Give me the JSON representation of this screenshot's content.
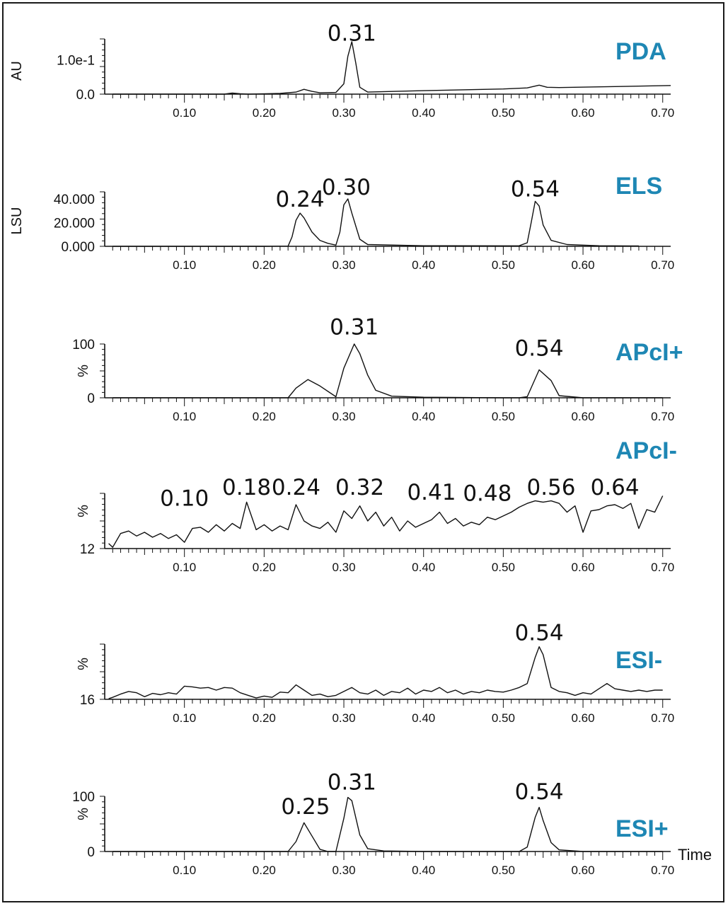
{
  "colors": {
    "detector_label": "#1e87b4",
    "trace": "#111111",
    "frame": "#1a1a1a"
  },
  "chart_data": [
    {
      "type": "line",
      "detector": "PDA",
      "ylabel": "AU",
      "xlim": [
        0.0,
        0.71
      ],
      "ylim": [
        0.0,
        0.16
      ],
      "yticks": [
        {
          "value": 0.0,
          "label": "0.0"
        },
        {
          "value": 0.1,
          "label": "1.0e-1"
        }
      ],
      "xticks": [
        "0.10",
        "0.20",
        "0.30",
        "0.40",
        "0.50",
        "0.60",
        "0.70"
      ],
      "peak_labels": [
        {
          "x": 0.31,
          "y": 0.155,
          "text": "0.31"
        }
      ],
      "x": [
        0.01,
        0.1,
        0.15,
        0.16,
        0.17,
        0.18,
        0.22,
        0.24,
        0.25,
        0.26,
        0.27,
        0.29,
        0.3,
        0.305,
        0.31,
        0.315,
        0.32,
        0.33,
        0.4,
        0.5,
        0.53,
        0.545,
        0.555,
        0.57,
        0.64,
        0.71
      ],
      "y": [
        0.0,
        0.0,
        0.0,
        0.003,
        0.001,
        0.0,
        0.002,
        0.006,
        0.014,
        0.008,
        0.004,
        0.005,
        0.03,
        0.11,
        0.152,
        0.09,
        0.02,
        0.006,
        0.01,
        0.015,
        0.018,
        0.026,
        0.02,
        0.019,
        0.022,
        0.025
      ]
    },
    {
      "type": "line",
      "detector": "ELS",
      "ylabel": "LSU",
      "xlim": [
        0.0,
        0.71
      ],
      "ylim": [
        0.0,
        46000
      ],
      "yticks": [
        {
          "value": 0,
          "label": "0.000"
        },
        {
          "value": 20000,
          "label": "20.000"
        },
        {
          "value": 40000,
          "label": "40.000"
        }
      ],
      "xticks": [
        "0.10",
        "0.20",
        "0.30",
        "0.40",
        "0.50",
        "0.60",
        "0.70"
      ],
      "peak_labels": [
        {
          "x": 0.245,
          "y": 33500,
          "text": "0.24"
        },
        {
          "x": 0.303,
          "y": 43500,
          "text": "0.30"
        },
        {
          "x": 0.54,
          "y": 42000,
          "text": "0.54"
        }
      ],
      "x": [
        0.01,
        0.1,
        0.2,
        0.23,
        0.235,
        0.24,
        0.245,
        0.25,
        0.26,
        0.27,
        0.28,
        0.29,
        0.295,
        0.3,
        0.305,
        0.31,
        0.32,
        0.33,
        0.4,
        0.5,
        0.52,
        0.53,
        0.535,
        0.54,
        0.545,
        0.55,
        0.56,
        0.58,
        0.62,
        0.67
      ],
      "y": [
        0,
        0,
        0,
        200,
        8000,
        22000,
        28000,
        24000,
        12000,
        5000,
        2500,
        1000,
        12000,
        35000,
        40000,
        28000,
        6000,
        1500,
        500,
        400,
        500,
        3000,
        20000,
        38000,
        34000,
        18000,
        5000,
        1500,
        500,
        300
      ]
    },
    {
      "type": "line",
      "detector": "APcI+",
      "ylabel": "%",
      "xlim": [
        0.0,
        0.71
      ],
      "ylim": [
        0,
        100
      ],
      "yticks": [
        {
          "value": 0,
          "label": "0"
        },
        {
          "value": 100,
          "label": "100"
        }
      ],
      "xticks": [
        "0.10",
        "0.20",
        "0.30",
        "0.40",
        "0.50",
        "0.60",
        "0.70"
      ],
      "peak_labels": [
        {
          "x": 0.313,
          "y": 118,
          "text": "0.31"
        },
        {
          "x": 0.545,
          "y": 78,
          "text": "0.54"
        }
      ],
      "x": [
        0.01,
        0.1,
        0.2,
        0.23,
        0.24,
        0.255,
        0.27,
        0.29,
        0.3,
        0.313,
        0.32,
        0.33,
        0.34,
        0.36,
        0.4,
        0.5,
        0.52,
        0.53,
        0.545,
        0.56,
        0.57,
        0.6,
        0.7
      ],
      "y": [
        0,
        0,
        0,
        0,
        18,
        34,
        22,
        2,
        55,
        100,
        82,
        42,
        14,
        3,
        1,
        0,
        0,
        2,
        52,
        32,
        4,
        0,
        0
      ]
    },
    {
      "type": "line",
      "detector": "APcI-",
      "ylabel": "%",
      "xlim": [
        0.0,
        0.71
      ],
      "ylim": [
        12,
        100
      ],
      "yticks": [
        {
          "value": 12,
          "label": "12"
        }
      ],
      "xticks": [
        "0.10",
        "0.20",
        "0.30",
        "0.40",
        "0.50",
        "0.60",
        "0.70"
      ],
      "peak_labels": [
        {
          "x": 0.1,
          "y": 80,
          "text": "0.10"
        },
        {
          "x": 0.178,
          "y": 98,
          "text": "0.18"
        },
        {
          "x": 0.24,
          "y": 98,
          "text": "0.24"
        },
        {
          "x": 0.32,
          "y": 98,
          "text": "0.32"
        },
        {
          "x": 0.41,
          "y": 90,
          "text": "0.41"
        },
        {
          "x": 0.48,
          "y": 88,
          "text": "0.48"
        },
        {
          "x": 0.56,
          "y": 98,
          "text": "0.56"
        },
        {
          "x": 0.64,
          "y": 98,
          "text": "0.64"
        }
      ],
      "x": [
        0.005,
        0.01,
        0.02,
        0.03,
        0.04,
        0.05,
        0.06,
        0.07,
        0.08,
        0.09,
        0.1,
        0.11,
        0.12,
        0.13,
        0.14,
        0.15,
        0.16,
        0.17,
        0.178,
        0.19,
        0.2,
        0.21,
        0.22,
        0.23,
        0.24,
        0.25,
        0.26,
        0.27,
        0.28,
        0.29,
        0.3,
        0.31,
        0.32,
        0.33,
        0.34,
        0.35,
        0.36,
        0.37,
        0.38,
        0.39,
        0.4,
        0.41,
        0.42,
        0.43,
        0.44,
        0.45,
        0.46,
        0.47,
        0.48,
        0.49,
        0.5,
        0.51,
        0.52,
        0.53,
        0.54,
        0.55,
        0.56,
        0.57,
        0.58,
        0.59,
        0.6,
        0.61,
        0.62,
        0.63,
        0.64,
        0.65,
        0.66,
        0.67,
        0.68,
        0.69,
        0.7
      ],
      "y": [
        20,
        14,
        36,
        40,
        32,
        38,
        30,
        36,
        28,
        34,
        22,
        44,
        46,
        38,
        50,
        40,
        52,
        44,
        86,
        42,
        50,
        40,
        48,
        42,
        82,
        56,
        48,
        44,
        54,
        38,
        72,
        60,
        80,
        56,
        70,
        48,
        62,
        40,
        56,
        46,
        52,
        58,
        70,
        52,
        60,
        48,
        54,
        50,
        62,
        58,
        64,
        70,
        78,
        84,
        88,
        86,
        88,
        84,
        70,
        80,
        38,
        72,
        74,
        80,
        82,
        76,
        84,
        44,
        74,
        70,
        96
      ]
    },
    {
      "type": "line",
      "detector": "ESI-",
      "ylabel": "%",
      "xlim": [
        0.0,
        0.71
      ],
      "ylim": [
        16,
        100
      ],
      "yticks": [
        {
          "value": 16,
          "label": "16"
        }
      ],
      "xticks": [
        "0.10",
        "0.20",
        "0.30",
        "0.40",
        "0.50",
        "0.60",
        "0.70"
      ],
      "peak_labels": [
        {
          "x": 0.545,
          "y": 106,
          "text": "0.54"
        }
      ],
      "x": [
        0.005,
        0.01,
        0.02,
        0.03,
        0.04,
        0.05,
        0.06,
        0.07,
        0.08,
        0.09,
        0.1,
        0.11,
        0.12,
        0.13,
        0.14,
        0.15,
        0.16,
        0.17,
        0.18,
        0.19,
        0.2,
        0.21,
        0.22,
        0.23,
        0.24,
        0.25,
        0.26,
        0.27,
        0.28,
        0.29,
        0.3,
        0.31,
        0.32,
        0.33,
        0.34,
        0.35,
        0.36,
        0.37,
        0.38,
        0.39,
        0.4,
        0.41,
        0.42,
        0.43,
        0.44,
        0.45,
        0.46,
        0.47,
        0.48,
        0.49,
        0.5,
        0.51,
        0.52,
        0.53,
        0.54,
        0.545,
        0.55,
        0.56,
        0.57,
        0.58,
        0.59,
        0.6,
        0.61,
        0.62,
        0.63,
        0.64,
        0.65,
        0.66,
        0.67,
        0.68,
        0.69,
        0.7
      ],
      "y": [
        17,
        19,
        24,
        28,
        26,
        20,
        25,
        23,
        26,
        24,
        36,
        35,
        33,
        34,
        30,
        34,
        33,
        26,
        22,
        18,
        21,
        19,
        27,
        26,
        38,
        30,
        22,
        24,
        20,
        22,
        28,
        34,
        26,
        24,
        30,
        22,
        28,
        26,
        33,
        24,
        30,
        28,
        34,
        26,
        30,
        24,
        28,
        26,
        30,
        28,
        27,
        30,
        34,
        40,
        80,
        96,
        84,
        34,
        28,
        26,
        22,
        26,
        24,
        32,
        40,
        32,
        30,
        28,
        30,
        28,
        30,
        30
      ]
    },
    {
      "type": "line",
      "detector": "ESI+",
      "ylabel": "%",
      "xlabel": "Time",
      "xlim": [
        0.0,
        0.71
      ],
      "ylim": [
        0,
        100
      ],
      "yticks": [
        {
          "value": 0,
          "label": "0"
        },
        {
          "value": 100,
          "label": "100"
        }
      ],
      "xticks": [
        "0.10",
        "0.20",
        "0.30",
        "0.40",
        "0.50",
        "0.60",
        "0.70"
      ],
      "peak_labels": [
        {
          "x": 0.252,
          "y": 68,
          "text": "0.25"
        },
        {
          "x": 0.31,
          "y": 112,
          "text": "0.31"
        },
        {
          "x": 0.545,
          "y": 95,
          "text": "0.54"
        }
      ],
      "x": [
        0.01,
        0.1,
        0.2,
        0.23,
        0.24,
        0.25,
        0.26,
        0.27,
        0.28,
        0.29,
        0.3,
        0.305,
        0.31,
        0.32,
        0.33,
        0.35,
        0.4,
        0.5,
        0.52,
        0.53,
        0.54,
        0.545,
        0.55,
        0.56,
        0.57,
        0.6,
        0.7
      ],
      "y": [
        0,
        0,
        0,
        0,
        18,
        52,
        28,
        4,
        0,
        0,
        60,
        98,
        92,
        30,
        5,
        1,
        0,
        0,
        0,
        8,
        62,
        80,
        56,
        16,
        3,
        0,
        0
      ]
    }
  ]
}
